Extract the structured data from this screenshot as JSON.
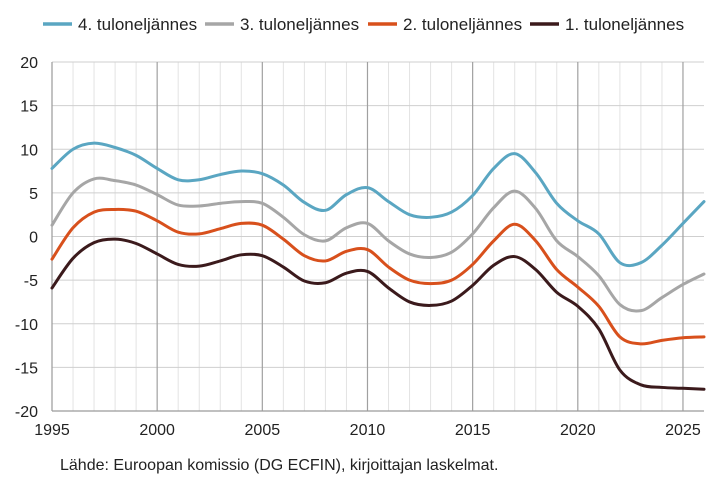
{
  "source_note": "Lähde: Euroopan komissio (DG ECFIN), kirjoittajan laskelmat.",
  "chart_data": {
    "type": "line",
    "title": "",
    "xlabel": "",
    "ylabel": "",
    "xlim": [
      1995,
      2026
    ],
    "ylim": [
      -20,
      20
    ],
    "x_ticks": [
      1995,
      2000,
      2005,
      2010,
      2015,
      2020,
      2025
    ],
    "y_ticks": [
      20,
      15,
      10,
      5,
      0,
      -5,
      -10,
      -15,
      -20
    ],
    "x_tick_labels": [
      "1995",
      "2000",
      "2005",
      "2010",
      "2015",
      "2020",
      "2025"
    ],
    "y_tick_labels": [
      "20",
      "15",
      "10",
      "5",
      "0",
      "-5",
      "-10",
      "-15",
      "-20"
    ],
    "grid": {
      "horizontal": true,
      "vertical_major_years": true,
      "vertical_minor_years": true
    },
    "legend_position": "top",
    "series": [
      {
        "name": "4. tuloneljännes",
        "color": "#5aa6c2",
        "points": [
          [
            1995,
            7.8
          ],
          [
            1996,
            10.0
          ],
          [
            1997,
            10.7
          ],
          [
            1998,
            10.2
          ],
          [
            1999,
            9.3
          ],
          [
            2000,
            7.8
          ],
          [
            2001,
            6.5
          ],
          [
            2002,
            6.5
          ],
          [
            2003,
            7.1
          ],
          [
            2004,
            7.5
          ],
          [
            2005,
            7.2
          ],
          [
            2006,
            5.9
          ],
          [
            2007,
            3.9
          ],
          [
            2008,
            3.0
          ],
          [
            2009,
            4.8
          ],
          [
            2010,
            5.6
          ],
          [
            2011,
            4.0
          ],
          [
            2012,
            2.5
          ],
          [
            2013,
            2.2
          ],
          [
            2014,
            2.8
          ],
          [
            2015,
            4.7
          ],
          [
            2016,
            7.8
          ],
          [
            2017,
            9.5
          ],
          [
            2018,
            7.3
          ],
          [
            2019,
            3.8
          ],
          [
            2020,
            1.8
          ],
          [
            2021,
            0.3
          ],
          [
            2022,
            -3.0
          ],
          [
            2023,
            -3.0
          ],
          [
            2024,
            -1.0
          ],
          [
            2025,
            1.5
          ],
          [
            2026,
            4.0
          ]
        ]
      },
      {
        "name": "3. tuloneljännes",
        "color": "#a6a6a6",
        "points": [
          [
            1995,
            1.3
          ],
          [
            1996,
            5.0
          ],
          [
            1997,
            6.6
          ],
          [
            1998,
            6.4
          ],
          [
            1999,
            5.9
          ],
          [
            2000,
            4.8
          ],
          [
            2001,
            3.6
          ],
          [
            2002,
            3.5
          ],
          [
            2003,
            3.8
          ],
          [
            2004,
            4.0
          ],
          [
            2005,
            3.8
          ],
          [
            2006,
            2.2
          ],
          [
            2007,
            0.2
          ],
          [
            2008,
            -0.5
          ],
          [
            2009,
            1.0
          ],
          [
            2010,
            1.5
          ],
          [
            2011,
            -0.5
          ],
          [
            2012,
            -2.0
          ],
          [
            2013,
            -2.4
          ],
          [
            2014,
            -1.8
          ],
          [
            2015,
            0.3
          ],
          [
            2016,
            3.3
          ],
          [
            2017,
            5.2
          ],
          [
            2018,
            3.2
          ],
          [
            2019,
            -0.5
          ],
          [
            2020,
            -2.3
          ],
          [
            2021,
            -4.5
          ],
          [
            2022,
            -7.8
          ],
          [
            2023,
            -8.5
          ],
          [
            2024,
            -7.0
          ],
          [
            2025,
            -5.5
          ],
          [
            2026,
            -4.3
          ]
        ]
      },
      {
        "name": "2. tuloneljännes",
        "color": "#d8501c",
        "points": [
          [
            1995,
            -2.6
          ],
          [
            1996,
            1.0
          ],
          [
            1997,
            2.8
          ],
          [
            1998,
            3.1
          ],
          [
            1999,
            2.9
          ],
          [
            2000,
            1.8
          ],
          [
            2001,
            0.5
          ],
          [
            2002,
            0.3
          ],
          [
            2003,
            0.9
          ],
          [
            2004,
            1.5
          ],
          [
            2005,
            1.3
          ],
          [
            2006,
            -0.3
          ],
          [
            2007,
            -2.2
          ],
          [
            2008,
            -2.8
          ],
          [
            2009,
            -1.7
          ],
          [
            2010,
            -1.5
          ],
          [
            2011,
            -3.5
          ],
          [
            2012,
            -5.0
          ],
          [
            2013,
            -5.4
          ],
          [
            2014,
            -5.0
          ],
          [
            2015,
            -3.2
          ],
          [
            2016,
            -0.5
          ],
          [
            2017,
            1.4
          ],
          [
            2018,
            -0.5
          ],
          [
            2019,
            -3.8
          ],
          [
            2020,
            -5.8
          ],
          [
            2021,
            -8.0
          ],
          [
            2022,
            -11.5
          ],
          [
            2023,
            -12.3
          ],
          [
            2024,
            -11.9
          ],
          [
            2025,
            -11.6
          ],
          [
            2026,
            -11.5
          ]
        ]
      },
      {
        "name": "1. tuloneljännes",
        "color": "#3b1a1c",
        "points": [
          [
            1995,
            -5.9
          ],
          [
            1996,
            -2.5
          ],
          [
            1997,
            -0.7
          ],
          [
            1998,
            -0.3
          ],
          [
            1999,
            -0.8
          ],
          [
            2000,
            -2.0
          ],
          [
            2001,
            -3.2
          ],
          [
            2002,
            -3.4
          ],
          [
            2003,
            -2.8
          ],
          [
            2004,
            -2.1
          ],
          [
            2005,
            -2.2
          ],
          [
            2006,
            -3.5
          ],
          [
            2007,
            -5.1
          ],
          [
            2008,
            -5.3
          ],
          [
            2009,
            -4.2
          ],
          [
            2010,
            -4.0
          ],
          [
            2011,
            -5.9
          ],
          [
            2012,
            -7.5
          ],
          [
            2013,
            -7.9
          ],
          [
            2014,
            -7.4
          ],
          [
            2015,
            -5.6
          ],
          [
            2016,
            -3.3
          ],
          [
            2017,
            -2.3
          ],
          [
            2018,
            -3.8
          ],
          [
            2019,
            -6.4
          ],
          [
            2020,
            -8.0
          ],
          [
            2021,
            -10.6
          ],
          [
            2022,
            -15.3
          ],
          [
            2023,
            -17.0
          ],
          [
            2024,
            -17.3
          ],
          [
            2025,
            -17.4
          ],
          [
            2026,
            -17.5
          ]
        ]
      }
    ]
  }
}
